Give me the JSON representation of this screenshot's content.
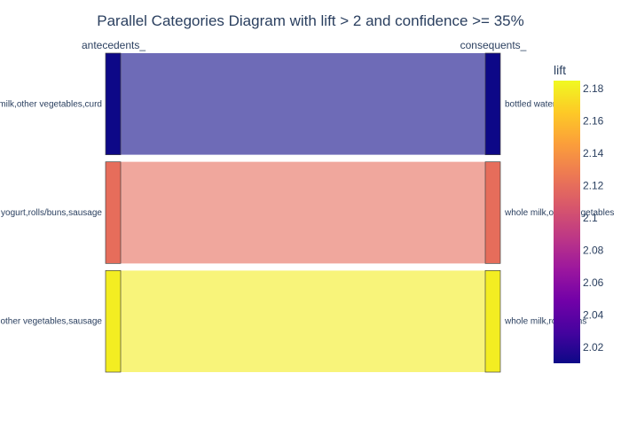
{
  "chart_data": {
    "type": "parallel_categories",
    "title": "Parallel Categories Diagram with lift > 2 and confidence >= 35%",
    "dimensions": [
      {
        "label": "antecedents_",
        "categories": [
          "whole milk,other vegetables,curd",
          "yogurt,rolls/buns,sausage",
          "other vegetables,sausage"
        ]
      },
      {
        "label": "consequents_",
        "categories": [
          "bottled water",
          "whole milk,other vegetables",
          "whole milk,rolls/buns"
        ]
      }
    ],
    "paths": [
      {
        "from": "whole milk,other vegetables,curd",
        "to": "bottled water",
        "count": 1,
        "lift": 2.01
      },
      {
        "from": "yogurt,rolls/buns,sausage",
        "to": "whole milk,other vegetables",
        "count": 1,
        "lift": 2.12
      },
      {
        "from": "other vegetables,sausage",
        "to": "whole milk,rolls/buns",
        "count": 1,
        "lift": 2.18
      }
    ],
    "colorbar": {
      "title": "lift",
      "range": [
        2.01,
        2.185
      ],
      "ticks": [
        2.02,
        2.04,
        2.06,
        2.08,
        2.1,
        2.12,
        2.14,
        2.16,
        2.18
      ],
      "tick_labels": [
        "2.02",
        "2.04",
        "2.06",
        "2.08",
        "2.1",
        "2.12",
        "2.14",
        "2.16",
        "2.18"
      ],
      "colorscale": [
        "#0d0887",
        "#46039f",
        "#7201a8",
        "#9c179e",
        "#bd3786",
        "#d8576b",
        "#ed7953",
        "#fb9f3a",
        "#fdca26",
        "#f0f921"
      ]
    }
  }
}
